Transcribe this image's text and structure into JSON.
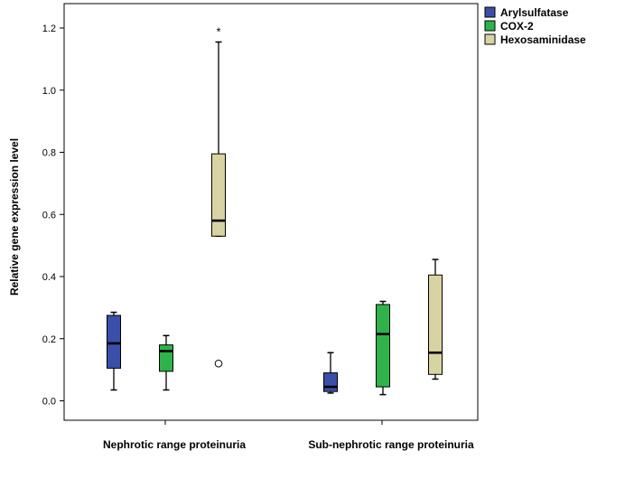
{
  "chart_data": {
    "type": "boxplot",
    "title": "",
    "xlabel": "",
    "ylabel": "Relative gene expression level",
    "ylim": [
      -0.07,
      1.25
    ],
    "yticks": [
      "0.0",
      "0.2",
      "0.4",
      "0.6",
      "0.8",
      "1.0",
      "1.2"
    ],
    "categories": [
      "Nephrotic range proteinuria",
      "Sub-nephrotic range proteinuria"
    ],
    "series": [
      {
        "name": "Arylsulfatase",
        "color": "#3b4fa8",
        "boxes": [
          {
            "min": 0.035,
            "q1": 0.105,
            "median": 0.185,
            "q3": 0.275,
            "max": 0.285,
            "outliers": [],
            "extremes": []
          },
          {
            "min": 0.025,
            "q1": 0.03,
            "median": 0.045,
            "q3": 0.09,
            "max": 0.155,
            "outliers": [],
            "extremes": []
          }
        ]
      },
      {
        "name": "COX-2",
        "color": "#2eb34a",
        "boxes": [
          {
            "min": 0.035,
            "q1": 0.095,
            "median": 0.16,
            "q3": 0.18,
            "max": 0.21,
            "outliers": [],
            "extremes": []
          },
          {
            "min": 0.02,
            "q1": 0.045,
            "median": 0.215,
            "q3": 0.31,
            "max": 0.32,
            "outliers": [],
            "extremes": []
          }
        ]
      },
      {
        "name": "Hexosaminidase",
        "color": "#d8d3a2",
        "boxes": [
          {
            "min": 0.53,
            "q1": 0.53,
            "median": 0.58,
            "q3": 0.795,
            "max": 1.155,
            "outliers": [
              0.12
            ],
            "extremes": [
              1.19
            ]
          },
          {
            "min": 0.07,
            "q1": 0.085,
            "median": 0.155,
            "q3": 0.405,
            "max": 0.455,
            "outliers": [],
            "extremes": []
          }
        ]
      }
    ],
    "legend": {
      "position": "top-right",
      "entries": [
        "Arylsulfatase",
        "COX-2",
        "Hexosaminidase"
      ]
    },
    "extreme_marker": "*"
  }
}
